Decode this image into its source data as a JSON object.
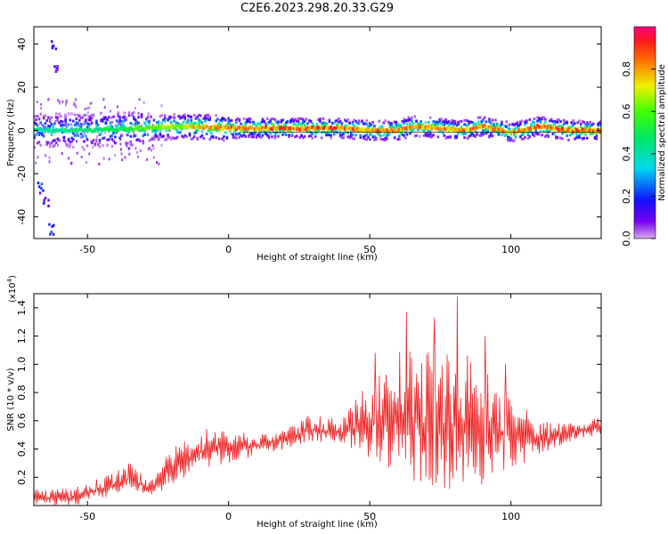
{
  "title": "C2E6.2023.298.20.33.G29",
  "colors": {
    "snr_line": "#ee2222",
    "axis": "#000000",
    "background": "#ffffff"
  },
  "chart_data": [
    {
      "type": "heatmap",
      "title": "C2E6.2023.298.20.33.G29",
      "xlabel": "Height of straight line (km)",
      "ylabel": "Frequency (Hz)",
      "xlim": [
        -69,
        132
      ],
      "ylim": [
        -50,
        48
      ],
      "x_ticks": [
        -50,
        0,
        50,
        100
      ],
      "y_ticks": [
        -40,
        -20,
        0,
        20,
        40
      ],
      "grid": false,
      "colorbar": {
        "label": "Normalized spectral amplitude",
        "range": [
          0,
          1
        ],
        "ticks": [
          0.0,
          0.2,
          0.4,
          0.6,
          0.8
        ],
        "colormap": "rainbow (magenta-blue-cyan-green-yellow-red-pink)",
        "placement": "right"
      },
      "trace_centerline_hz": [
        {
          "x": -65,
          "y": 0
        },
        {
          "x": -50,
          "y": 0
        },
        {
          "x": -30,
          "y": 1
        },
        {
          "x": -15,
          "y": 2
        },
        {
          "x": 0,
          "y": 1
        },
        {
          "x": 20,
          "y": 1
        },
        {
          "x": 40,
          "y": 1
        },
        {
          "x": 50,
          "y": 0
        },
        {
          "x": 60,
          "y": 0
        },
        {
          "x": 65,
          "y": 2
        },
        {
          "x": 75,
          "y": 1
        },
        {
          "x": 82,
          "y": 0
        },
        {
          "x": 90,
          "y": 2
        },
        {
          "x": 100,
          "y": -1
        },
        {
          "x": 110,
          "y": 2
        },
        {
          "x": 120,
          "y": 0
        },
        {
          "x": 132,
          "y": 0
        }
      ],
      "trace_peak_amplitude": [
        {
          "x": -60,
          "y": 0.45
        },
        {
          "x": -40,
          "y": 0.55
        },
        {
          "x": -20,
          "y": 0.7
        },
        {
          "x": 0,
          "y": 0.9
        },
        {
          "x": 20,
          "y": 0.9
        },
        {
          "x": 40,
          "y": 0.9
        },
        {
          "x": 60,
          "y": 0.85
        },
        {
          "x": 80,
          "y": 0.85
        },
        {
          "x": 100,
          "y": 0.85
        },
        {
          "x": 120,
          "y": 0.9
        }
      ],
      "side_tracks_hz": [
        {
          "x": -61,
          "y": 30
        },
        {
          "x": -62,
          "y": 40
        },
        {
          "x": -67,
          "y": -26
        },
        {
          "x": -65,
          "y": -33
        },
        {
          "x": -63,
          "y": -45
        }
      ]
    },
    {
      "type": "line",
      "xlabel": "Height of straight line (km)",
      "ylabel": "SNR (10 * v/v)",
      "y_scale_label": "(x10",
      "y_scale_exponent": "4",
      "xlim": [
        -69,
        132
      ],
      "ylim": [
        0,
        1.5
      ],
      "x_ticks": [
        -50,
        0,
        50,
        100
      ],
      "y_ticks": [
        0.2,
        0.4,
        0.6,
        0.8,
        1.0,
        1.2,
        1.4
      ],
      "grid": false,
      "series": [
        {
          "color": "#ee2222",
          "envelope": [
            {
              "x": -69,
              "lo": 0.0,
              "hi": 0.12
            },
            {
              "x": -55,
              "lo": 0.0,
              "hi": 0.12
            },
            {
              "x": -45,
              "lo": 0.05,
              "hi": 0.2
            },
            {
              "x": -35,
              "lo": 0.1,
              "hi": 0.3
            },
            {
              "x": -28,
              "lo": 0.05,
              "hi": 0.2
            },
            {
              "x": -20,
              "lo": 0.15,
              "hi": 0.4
            },
            {
              "x": -10,
              "lo": 0.25,
              "hi": 0.55
            },
            {
              "x": 0,
              "lo": 0.3,
              "hi": 0.55
            },
            {
              "x": 10,
              "lo": 0.35,
              "hi": 0.5
            },
            {
              "x": 20,
              "lo": 0.4,
              "hi": 0.55
            },
            {
              "x": 30,
              "lo": 0.45,
              "hi": 0.65
            },
            {
              "x": 40,
              "lo": 0.45,
              "hi": 0.6
            },
            {
              "x": 50,
              "lo": 0.3,
              "hi": 0.9
            },
            {
              "x": 60,
              "lo": 0.2,
              "hi": 1.1
            },
            {
              "x": 70,
              "lo": 0.15,
              "hi": 1.1
            },
            {
              "x": 80,
              "lo": 0.1,
              "hi": 1.15
            },
            {
              "x": 90,
              "lo": 0.15,
              "hi": 1.0
            },
            {
              "x": 100,
              "lo": 0.25,
              "hi": 0.8
            },
            {
              "x": 110,
              "lo": 0.35,
              "hi": 0.6
            },
            {
              "x": 120,
              "lo": 0.45,
              "hi": 0.6
            },
            {
              "x": 132,
              "lo": 0.5,
              "hi": 0.62
            }
          ],
          "peaks": [
            {
              "x": 52,
              "y": 1.08
            },
            {
              "x": 63,
              "y": 1.37
            },
            {
              "x": 73,
              "y": 1.33
            },
            {
              "x": 81,
              "y": 1.48
            },
            {
              "x": 91,
              "y": 1.2
            },
            {
              "x": 98,
              "y": 1.0
            }
          ]
        }
      ]
    }
  ]
}
